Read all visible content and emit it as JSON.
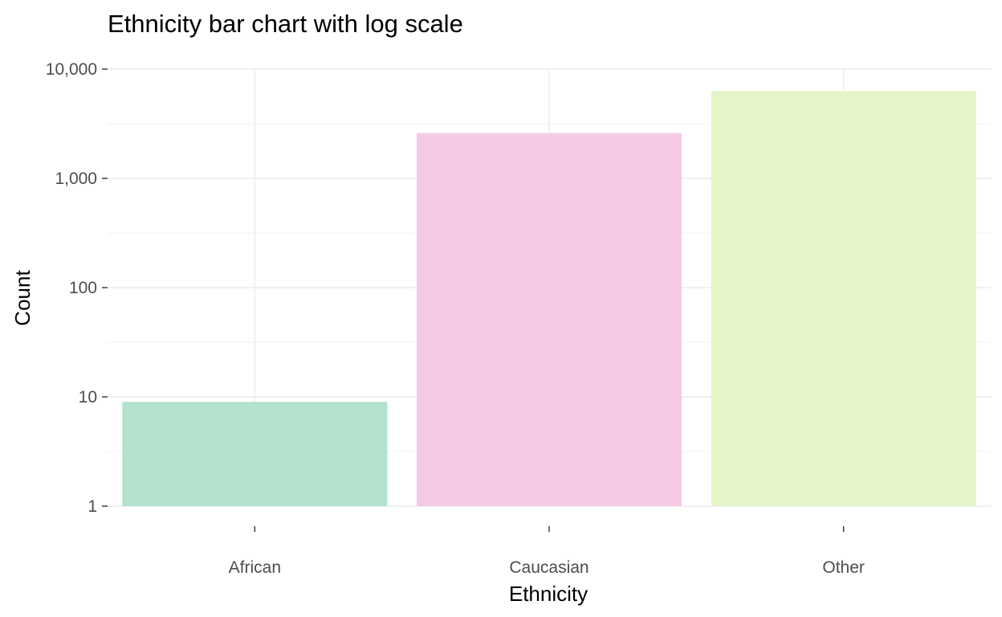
{
  "chart_data": {
    "type": "bar",
    "title": "Ethnicity bar chart with log scale",
    "xlabel": "Ethnicity",
    "ylabel": "Count",
    "y_scale": "log10",
    "ylim": [
      1,
      10000
    ],
    "y_ticks": [
      1,
      10,
      100,
      1000,
      10000
    ],
    "y_tick_labels": [
      "1",
      "10",
      "100",
      "1,000",
      "10,000"
    ],
    "categories": [
      "African",
      "Caucasian",
      "Other"
    ],
    "values": [
      9,
      2600,
      6300
    ],
    "colors": [
      "#b3e2cd",
      "#f4cae4",
      "#e6f5c9"
    ],
    "grid": true,
    "legend": "none"
  }
}
